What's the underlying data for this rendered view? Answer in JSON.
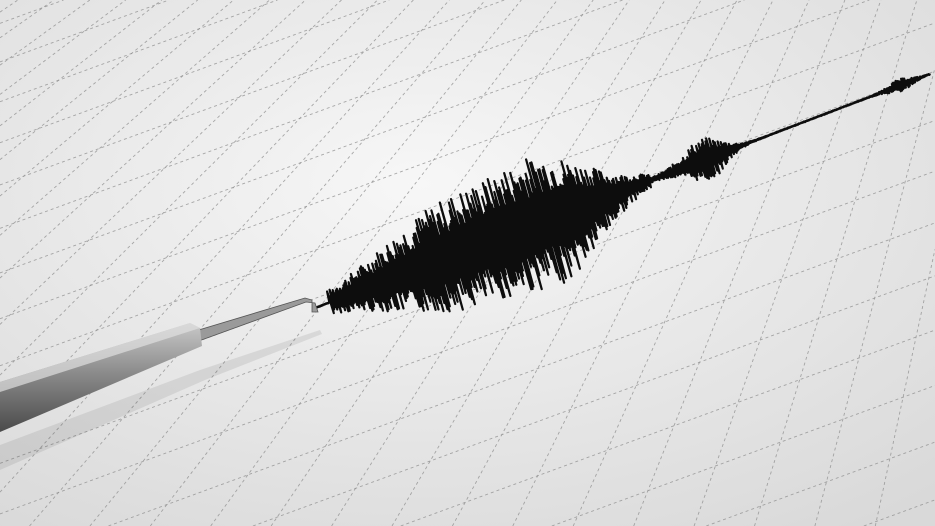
{
  "colors": {
    "paper": "#f1f1f1",
    "paper_shade": "#dcdcdc",
    "grid": "#8e8e8e",
    "trace": "#0d0d0d",
    "stylus": "#8a8a8a"
  }
}
